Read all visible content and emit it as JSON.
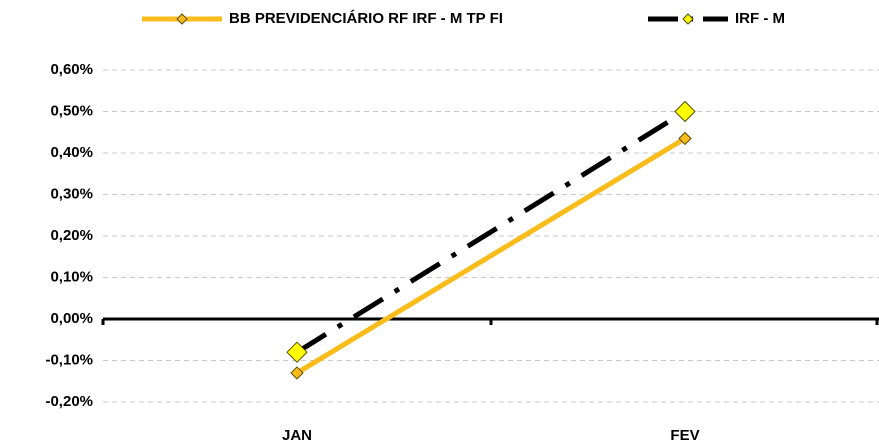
{
  "chart_data": {
    "type": "line",
    "categories": [
      "JAN",
      "FEV"
    ],
    "series": [
      {
        "name": "BB PREVIDENCIÁRIO RF IRF - M TP FI",
        "color": "#F9BC1B",
        "marker_color": "#F9BC1B",
        "line_style": "solid",
        "values": [
          -0.13,
          0.435
        ]
      },
      {
        "name": "IRF - M",
        "color": "#000000",
        "marker_color": "#FFFF00",
        "line_style": "dash-dot",
        "values": [
          -0.08,
          0.5
        ]
      }
    ],
    "ylim": [
      -0.2,
      0.6
    ],
    "yticks": [
      {
        "value": -0.2,
        "label": "-0,20%"
      },
      {
        "value": -0.1,
        "label": "-0,10%"
      },
      {
        "value": 0,
        "label": "0,00%"
      },
      {
        "value": 0.1,
        "label": "0,10%"
      },
      {
        "value": 0.2,
        "label": "0,20%"
      },
      {
        "value": 0.3,
        "label": "0,30%"
      },
      {
        "value": 0.4,
        "label": "0,40%"
      },
      {
        "value": 0.5,
        "label": "0,50%"
      },
      {
        "value": 0.6,
        "label": "0,60%"
      }
    ],
    "grid": true,
    "legend": "top"
  }
}
